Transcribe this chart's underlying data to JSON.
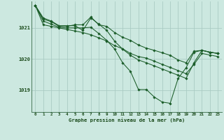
{
  "title": "Graphe pression niveau de la mer (hPa)",
  "background_color": "#cce8e0",
  "grid_color": "#aaccc4",
  "line_color": "#1a5c28",
  "marker_color": "#1a5c28",
  "x_ticks": [
    0,
    1,
    2,
    3,
    4,
    5,
    6,
    7,
    8,
    9,
    10,
    11,
    12,
    13,
    14,
    15,
    16,
    17,
    18,
    19,
    20,
    21,
    22,
    23
  ],
  "y_ticks": [
    1019,
    1020,
    1021
  ],
  "ylim": [
    1018.3,
    1021.85
  ],
  "xlim": [
    -0.5,
    23.5
  ],
  "lines": [
    [
      1021.72,
      1021.28,
      1021.2,
      1021.05,
      1021.05,
      1021.1,
      1021.1,
      1021.35,
      1021.1,
      1021.05,
      1020.85,
      1020.7,
      1020.6,
      1020.45,
      1020.35,
      1020.28,
      1020.2,
      1020.12,
      1019.97,
      1019.88,
      1020.25,
      1020.28,
      1020.22,
      1020.18
    ],
    [
      1021.72,
      1021.22,
      1021.12,
      1021.02,
      1021.0,
      1021.0,
      1021.0,
      1021.02,
      1020.82,
      1020.6,
      1020.32,
      1019.88,
      1019.6,
      1019.02,
      1019.02,
      1018.78,
      1018.62,
      1018.58,
      1019.38,
      1019.72,
      1020.22,
      1020.28,
      1020.22,
      1020.18
    ],
    [
      1021.72,
      1021.32,
      1021.22,
      1021.07,
      1021.07,
      1021.07,
      1020.92,
      1021.32,
      1021.12,
      1020.92,
      1020.57,
      1020.32,
      1020.12,
      1019.97,
      1019.88,
      1019.78,
      1019.68,
      1019.58,
      1019.48,
      1019.38,
      1019.88,
      1020.28,
      1020.22,
      1020.18
    ],
    [
      1021.72,
      1021.1,
      1021.05,
      1021.0,
      1020.95,
      1020.9,
      1020.85,
      1020.78,
      1020.68,
      1020.58,
      1020.43,
      1020.33,
      1020.18,
      1020.08,
      1020.03,
      1019.93,
      1019.83,
      1019.73,
      1019.63,
      1019.53,
      1019.83,
      1020.18,
      1020.13,
      1020.08
    ]
  ]
}
